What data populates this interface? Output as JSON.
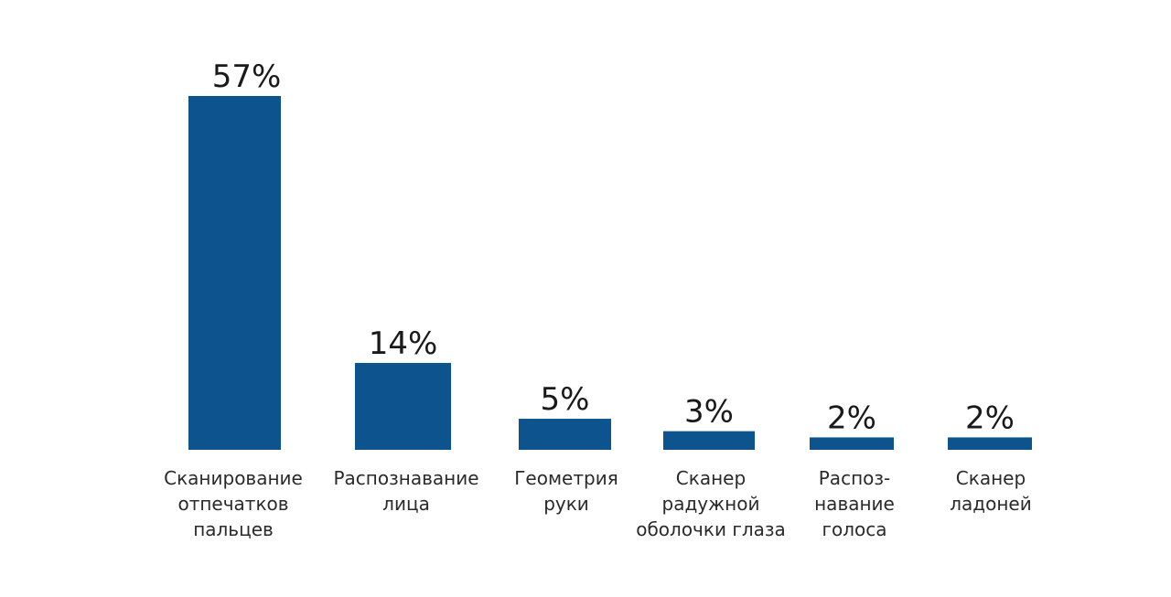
{
  "chart_data": {
    "type": "bar",
    "title": "",
    "xlabel": "",
    "ylabel": "",
    "unit": "%",
    "ylim": [
      0,
      57
    ],
    "grid": false,
    "bar_color": "#0d548e",
    "categories": [
      [
        "Сканирование",
        "отпечатков",
        "пальцев"
      ],
      [
        "Распознавание",
        "лица"
      ],
      [
        "Геометрия",
        "руки"
      ],
      [
        "Сканер",
        "радужной",
        "оболочки глаза"
      ],
      [
        "Распоз-",
        "навание",
        "голоса"
      ],
      [
        "Сканер",
        "ладоней"
      ]
    ],
    "values": [
      57,
      14,
      5,
      3,
      2,
      2
    ],
    "value_labels": [
      "57%",
      "14%",
      "5%",
      "3%",
      "2%",
      "2%"
    ]
  }
}
